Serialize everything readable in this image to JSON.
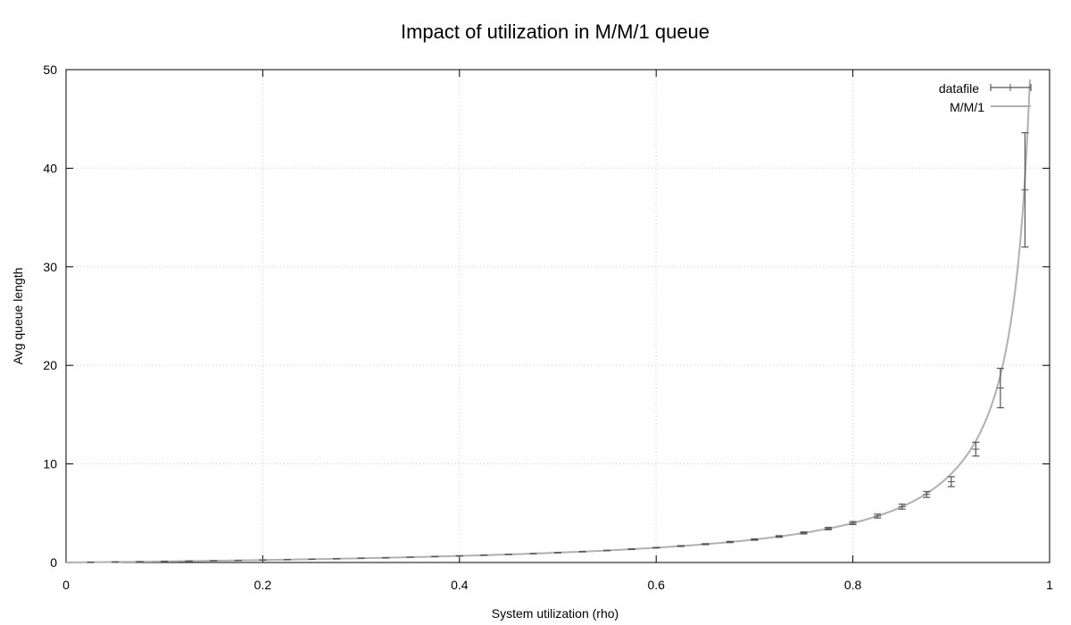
{
  "chart_data": {
    "type": "line",
    "title": "Impact of utilization in M/M/1 queue",
    "xlabel": "System utilization (rho)",
    "ylabel": "Avg queue length",
    "xlim": [
      0,
      1
    ],
    "ylim": [
      0,
      50
    ],
    "x_ticks": [
      "0",
      "0.2",
      "0.4",
      "0.6",
      "0.8",
      "1"
    ],
    "y_ticks": [
      "0",
      "10",
      "20",
      "30",
      "40",
      "50"
    ],
    "grid": true,
    "legend_position": "top-right",
    "legend": [
      "datafile",
      "M/M/1"
    ],
    "colors": {
      "datafile": "#555555",
      "model": "#b0b0b0",
      "grid": "#cccccc",
      "frame": "#000000"
    },
    "series": [
      {
        "name": "datafile",
        "style": "errorbars",
        "points": [
          {
            "x": 0.025,
            "y": 0.03,
            "err": 0.005
          },
          {
            "x": 0.05,
            "y": 0.05,
            "err": 0.005
          },
          {
            "x": 0.075,
            "y": 0.08,
            "err": 0.005
          },
          {
            "x": 0.1,
            "y": 0.11,
            "err": 0.005
          },
          {
            "x": 0.125,
            "y": 0.14,
            "err": 0.005
          },
          {
            "x": 0.15,
            "y": 0.18,
            "err": 0.005
          },
          {
            "x": 0.175,
            "y": 0.21,
            "err": 0.005
          },
          {
            "x": 0.2,
            "y": 0.25,
            "err": 0.005
          },
          {
            "x": 0.225,
            "y": 0.29,
            "err": 0.005
          },
          {
            "x": 0.25,
            "y": 0.33,
            "err": 0.005
          },
          {
            "x": 0.275,
            "y": 0.38,
            "err": 0.005
          },
          {
            "x": 0.3,
            "y": 0.43,
            "err": 0.005
          },
          {
            "x": 0.325,
            "y": 0.48,
            "err": 0.005
          },
          {
            "x": 0.35,
            "y": 0.54,
            "err": 0.005
          },
          {
            "x": 0.375,
            "y": 0.6,
            "err": 0.01
          },
          {
            "x": 0.4,
            "y": 0.67,
            "err": 0.01
          },
          {
            "x": 0.425,
            "y": 0.74,
            "err": 0.01
          },
          {
            "x": 0.45,
            "y": 0.82,
            "err": 0.01
          },
          {
            "x": 0.475,
            "y": 0.9,
            "err": 0.01
          },
          {
            "x": 0.5,
            "y": 1.0,
            "err": 0.02
          },
          {
            "x": 0.525,
            "y": 1.1,
            "err": 0.02
          },
          {
            "x": 0.55,
            "y": 1.22,
            "err": 0.02
          },
          {
            "x": 0.575,
            "y": 1.35,
            "err": 0.03
          },
          {
            "x": 0.6,
            "y": 1.5,
            "err": 0.03
          },
          {
            "x": 0.625,
            "y": 1.67,
            "err": 0.04
          },
          {
            "x": 0.65,
            "y": 1.86,
            "err": 0.05
          },
          {
            "x": 0.675,
            "y": 2.08,
            "err": 0.06
          },
          {
            "x": 0.7,
            "y": 2.33,
            "err": 0.07
          },
          {
            "x": 0.725,
            "y": 2.64,
            "err": 0.08
          },
          {
            "x": 0.75,
            "y": 3.0,
            "err": 0.1
          },
          {
            "x": 0.775,
            "y": 3.44,
            "err": 0.12
          },
          {
            "x": 0.8,
            "y": 4.0,
            "err": 0.15
          },
          {
            "x": 0.825,
            "y": 4.71,
            "err": 0.2
          },
          {
            "x": 0.85,
            "y": 5.67,
            "err": 0.25
          },
          {
            "x": 0.875,
            "y": 6.9,
            "err": 0.3
          },
          {
            "x": 0.9,
            "y": 8.2,
            "err": 0.5
          },
          {
            "x": 0.925,
            "y": 11.5,
            "err": 0.7
          },
          {
            "x": 0.95,
            "y": 17.7,
            "err": 2.0
          },
          {
            "x": 0.975,
            "y": 37.8,
            "err": 5.8
          }
        ]
      },
      {
        "name": "M/M/1",
        "style": "line",
        "formula": "rho/(1-rho)",
        "x_range": [
          0.0,
          0.98
        ]
      }
    ]
  }
}
